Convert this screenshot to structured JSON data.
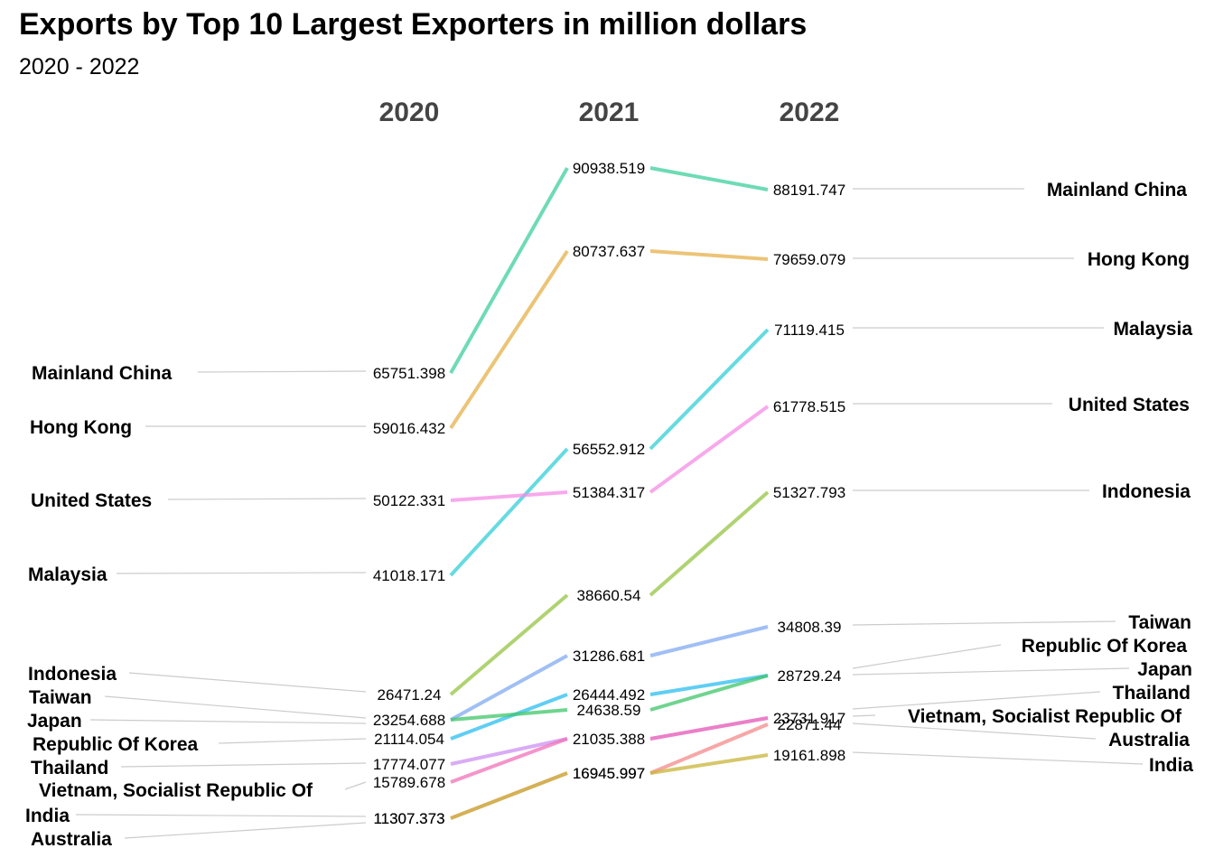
{
  "title": "Exports by Top 10 Largest Exporters in million dollars",
  "subtitle": "2020 - 2022",
  "chart_data": {
    "type": "line",
    "chart_style": "slopegraph",
    "years": [
      "2020",
      "2021",
      "2022"
    ],
    "series": [
      {
        "name": "Mainland China",
        "color": "#3ecf9c",
        "values": [
          65751.398,
          90938.519,
          88191.747
        ]
      },
      {
        "name": "Hong Kong",
        "color": "#e6b04a",
        "values": [
          59016.432,
          80737.637,
          79659.079
        ]
      },
      {
        "name": "Malaysia",
        "color": "#32cfd6",
        "values": [
          41018.171,
          56552.912,
          71119.415
        ]
      },
      {
        "name": "United States",
        "color": "#f48ce6",
        "values": [
          50122.331,
          51384.317,
          61778.515
        ]
      },
      {
        "name": "Indonesia",
        "color": "#94c442",
        "values": [
          26471.24,
          38660.54,
          51327.793
        ]
      },
      {
        "name": "Taiwan",
        "color": "#80aaf2",
        "values": [
          23254.688,
          31286.681,
          34808.39
        ]
      },
      {
        "name": "Republic Of Korea",
        "color": "#2bbdf0",
        "values": [
          21114.054,
          26444.492,
          28729.24
        ]
      },
      {
        "name": "Japan",
        "color": "#3fc66a",
        "values": [
          23254.688,
          24638.59,
          28729.24
        ]
      },
      {
        "name": "Thailand",
        "color": "#cc90f2",
        "values": [
          17774.077,
          21035.388,
          23731.917
        ]
      },
      {
        "name": "Vietnam, Socialist Republic Of",
        "color": "#f071b8",
        "values": [
          15789.678,
          21035.388,
          23731.917
        ]
      },
      {
        "name": "Australia",
        "color": "#f48a8a",
        "values": [
          11307.373,
          16945.997,
          22871.44
        ]
      },
      {
        "name": "India",
        "color": "#c8b43a",
        "values": [
          11307.373,
          16945.997,
          19161.898
        ]
      }
    ],
    "value_labels": {
      "2020": [
        "65751.398",
        "59016.432",
        "50122.331",
        "41018.171",
        "26471.24",
        "23254.688",
        "21114.054",
        "17774.077",
        "15789.678",
        "11307.373",
        "11307.373"
      ],
      "2021": [
        "90938.519",
        "80737.637",
        "56552.912",
        "51384.317",
        "38660.54",
        "31286.681",
        "26444.492",
        "24638.59",
        "21035.388",
        "16945.997",
        "16945.997"
      ],
      "2022": [
        "88191.747",
        "79659.079",
        "71119.415",
        "61778.515",
        "51327.793",
        "34808.39",
        "28729.24",
        "23731.917",
        "22871.44",
        "19161.898"
      ]
    },
    "left_labels": [
      "Mainland China",
      "Hong Kong",
      "United States",
      "Malaysia",
      "Indonesia",
      "Taiwan",
      "Japan",
      "Republic Of Korea",
      "Thailand",
      "Vietnam, Socialist Republic Of",
      "India",
      "Australia"
    ],
    "right_labels": [
      "Mainland China",
      "Hong Kong",
      "Malaysia",
      "United States",
      "Indonesia",
      "Taiwan",
      "Republic Of Korea",
      "Japan",
      "Thailand",
      "Vietnam, Socialist Republic Of",
      "Australia",
      "India"
    ],
    "grid": false,
    "legend": "none"
  }
}
